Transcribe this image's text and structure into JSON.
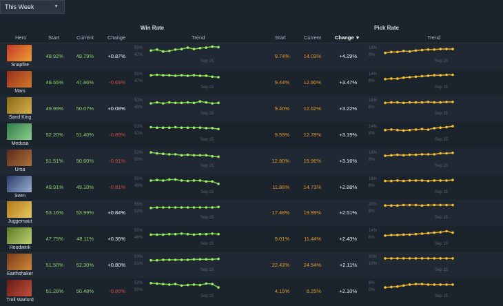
{
  "filter": {
    "label": "This Week"
  },
  "headers": {
    "win_rate": "Win Rate",
    "pick_rate": "Pick Rate",
    "hero": "Hero",
    "start": "Start",
    "current": "Current",
    "change": "Change",
    "trend": "Trend"
  },
  "sort": {
    "column": "pick_rate_change",
    "direction": "descending"
  },
  "colors": {
    "win_line": "#6fcf3f",
    "win_point": "#a6e86a",
    "pick_line": "#e0a21f",
    "pick_point": "#f2c23a",
    "positive": "#eef2f6",
    "negative": "#d24a3e",
    "pick_value": "#e39a2b"
  },
  "heroes": [
    {
      "name": "Snapfire",
      "avatar": [
        "#c0392b",
        "#f0a030"
      ],
      "wr_start": "48.92%",
      "wr_current": "49.79%",
      "wr_change": "+0.87%",
      "pr_start": "9.74%",
      "pr_current": "14.03%",
      "pr_change": "+4.29%",
      "wr_labels": [
        "50%",
        "47%"
      ],
      "pr_labels": [
        "16%",
        "8%"
      ],
      "date": "Sep 15",
      "wr_trend": [
        0.45,
        0.35,
        0.55,
        0.5,
        0.35,
        0.3,
        0.15,
        0.3,
        0.2,
        0.15,
        0.05,
        0.1
      ],
      "pr_trend": [
        0.7,
        0.6,
        0.6,
        0.5,
        0.55,
        0.45,
        0.4,
        0.35,
        0.35,
        0.3,
        0.3,
        0.3
      ]
    },
    {
      "name": "Mars",
      "avatar": [
        "#9b2d1f",
        "#d07a2a"
      ],
      "wr_start": "48.55%",
      "wr_current": "47.86%",
      "wr_change": "-0.69%",
      "pr_start": "9.44%",
      "pr_current": "12.90%",
      "pr_change": "+3.47%",
      "wr_labels": [
        "50%",
        "47%"
      ],
      "pr_labels": [
        "14%",
        "8%"
      ],
      "date": "Sep 15",
      "wr_trend": [
        0.3,
        0.25,
        0.3,
        0.3,
        0.35,
        0.3,
        0.35,
        0.3,
        0.35,
        0.35,
        0.45,
        0.5
      ],
      "pr_trend": [
        0.7,
        0.65,
        0.65,
        0.55,
        0.5,
        0.45,
        0.4,
        0.35,
        0.3,
        0.3,
        0.25,
        0.25
      ]
    },
    {
      "name": "Sand King",
      "avatar": [
        "#8a6a1a",
        "#d6b04a"
      ],
      "wr_start": "49.99%",
      "wr_current": "50.07%",
      "wr_change": "+0.08%",
      "pr_start": "9.40%",
      "pr_current": "12.62%",
      "pr_change": "+3.22%",
      "wr_labels": [
        "51%",
        "49%"
      ],
      "pr_labels": [
        "16%",
        "8%"
      ],
      "date": "Sep 15",
      "wr_trend": [
        0.5,
        0.4,
        0.5,
        0.4,
        0.45,
        0.45,
        0.4,
        0.45,
        0.3,
        0.4,
        0.5,
        0.45
      ],
      "pr_trend": [
        0.45,
        0.4,
        0.4,
        0.45,
        0.4,
        0.4,
        0.4,
        0.35,
        0.4,
        0.4,
        0.35,
        0.35
      ]
    },
    {
      "name": "Medusa",
      "avatar": [
        "#2f7a4a",
        "#8ed08a"
      ],
      "wr_start": "52.20%",
      "wr_current": "51.40%",
      "wr_change": "-0.80%",
      "pr_start": "9.59%",
      "pr_current": "12.78%",
      "pr_change": "+3.19%",
      "wr_labels": [
        "53%",
        "51%"
      ],
      "pr_labels": [
        "14%",
        "8%"
      ],
      "date": "Sep 15",
      "wr_trend": [
        0.25,
        0.3,
        0.3,
        0.3,
        0.25,
        0.3,
        0.3,
        0.3,
        0.3,
        0.35,
        0.35,
        0.45
      ],
      "pr_trend": [
        0.55,
        0.5,
        0.55,
        0.6,
        0.55,
        0.5,
        0.45,
        0.5,
        0.35,
        0.3,
        0.25,
        0.15
      ]
    },
    {
      "name": "Ursa",
      "avatar": [
        "#5a2a1a",
        "#b0703a"
      ],
      "wr_start": "51.51%",
      "wr_current": "50.60%",
      "wr_change": "-0.91%",
      "pr_start": "12.80%",
      "pr_current": "15.96%",
      "pr_change": "+3.16%",
      "wr_labels": [
        "52%",
        "50%"
      ],
      "pr_labels": [
        "18%",
        "8%"
      ],
      "date": "Sep 15",
      "wr_trend": [
        0.15,
        0.25,
        0.3,
        0.35,
        0.35,
        0.45,
        0.4,
        0.45,
        0.45,
        0.45,
        0.55,
        0.6
      ],
      "pr_trend": [
        0.5,
        0.45,
        0.4,
        0.45,
        0.4,
        0.4,
        0.35,
        0.35,
        0.35,
        0.25,
        0.25,
        0.2
      ]
    },
    {
      "name": "Sven",
      "avatar": [
        "#2a3a6a",
        "#9ab0d0"
      ],
      "wr_start": "49.91%",
      "wr_current": "49.10%",
      "wr_change": "-0.81%",
      "pr_start": "11.86%",
      "pr_current": "14.73%",
      "pr_change": "+2.88%",
      "wr_labels": [
        "50%",
        "49%"
      ],
      "pr_labels": [
        "16%",
        "8%"
      ],
      "date": "Sep 15",
      "wr_trend": [
        0.35,
        0.3,
        0.35,
        0.25,
        0.25,
        0.35,
        0.4,
        0.35,
        0.35,
        0.45,
        0.45,
        0.7
      ],
      "pr_trend": [
        0.4,
        0.4,
        0.35,
        0.4,
        0.35,
        0.35,
        0.35,
        0.4,
        0.35,
        0.35,
        0.35,
        0.3
      ]
    },
    {
      "name": "Juggernaut",
      "avatar": [
        "#b07a1a",
        "#e8c860"
      ],
      "wr_start": "53.16%",
      "wr_current": "53.99%",
      "wr_change": "+0.84%",
      "pr_start": "17.48%",
      "pr_current": "19.99%",
      "pr_change": "+2.51%",
      "wr_labels": [
        "55%",
        "52%"
      ],
      "pr_labels": [
        "20%",
        "8%"
      ],
      "date": "Sep 15",
      "wr_trend": [
        0.55,
        0.5,
        0.5,
        0.5,
        0.5,
        0.5,
        0.5,
        0.5,
        0.5,
        0.5,
        0.5,
        0.45
      ],
      "pr_trend": [
        0.3,
        0.3,
        0.3,
        0.25,
        0.25,
        0.25,
        0.3,
        0.25,
        0.25,
        0.25,
        0.25,
        0.25
      ]
    },
    {
      "name": "Hoodwink",
      "avatar": [
        "#5a7a2a",
        "#c0d070"
      ],
      "wr_start": "47.75%",
      "wr_current": "48.11%",
      "wr_change": "+0.36%",
      "pr_start": "9.01%",
      "pr_current": "11.44%",
      "pr_change": "+2.43%",
      "wr_labels": [
        "50%",
        "46%"
      ],
      "pr_labels": [
        "14%",
        "8%"
      ],
      "date": "Sep 15",
      "wr_trend": [
        0.6,
        0.6,
        0.6,
        0.55,
        0.55,
        0.5,
        0.55,
        0.6,
        0.55,
        0.55,
        0.5,
        0.55
      ],
      "pr_trend": [
        0.7,
        0.65,
        0.65,
        0.6,
        0.6,
        0.55,
        0.5,
        0.45,
        0.4,
        0.35,
        0.25,
        0.4
      ]
    },
    {
      "name": "Earthshaker",
      "avatar": [
        "#7a3a1a",
        "#d08a3a"
      ],
      "wr_start": "51.50%",
      "wr_current": "52.30%",
      "wr_change": "+0.80%",
      "pr_start": "22.43%",
      "pr_current": "24.54%",
      "pr_change": "+2.11%",
      "wr_labels": [
        "53%",
        "51%"
      ],
      "pr_labels": [
        "30%",
        "10%"
      ],
      "date": "Sep 15",
      "wr_trend": [
        0.55,
        0.55,
        0.5,
        0.5,
        0.5,
        0.5,
        0.5,
        0.45,
        0.45,
        0.45,
        0.45,
        0.4
      ],
      "pr_trend": [
        0.35,
        0.35,
        0.35,
        0.35,
        0.35,
        0.35,
        0.35,
        0.35,
        0.35,
        0.35,
        0.35,
        0.35
      ]
    },
    {
      "name": "Troll Warlord",
      "avatar": [
        "#6a1a1a",
        "#c0503a"
      ],
      "wr_start": "51.28%",
      "wr_current": "50.48%",
      "wr_change": "-0.80%",
      "pr_start": "4.15%",
      "pr_current": "6.25%",
      "pr_change": "+2.10%",
      "wr_labels": [
        "52%",
        "50%"
      ],
      "pr_labels": [
        "8%",
        "0%"
      ],
      "date": "Sep 15",
      "wr_trend": [
        0.2,
        0.25,
        0.3,
        0.35,
        0.3,
        0.45,
        0.4,
        0.35,
        0.4,
        0.25,
        0.3,
        0.65
      ],
      "pr_trend": [
        0.65,
        0.6,
        0.55,
        0.45,
        0.35,
        0.3,
        0.3,
        0.35,
        0.35,
        0.35,
        0.35,
        0.35
      ]
    }
  ]
}
